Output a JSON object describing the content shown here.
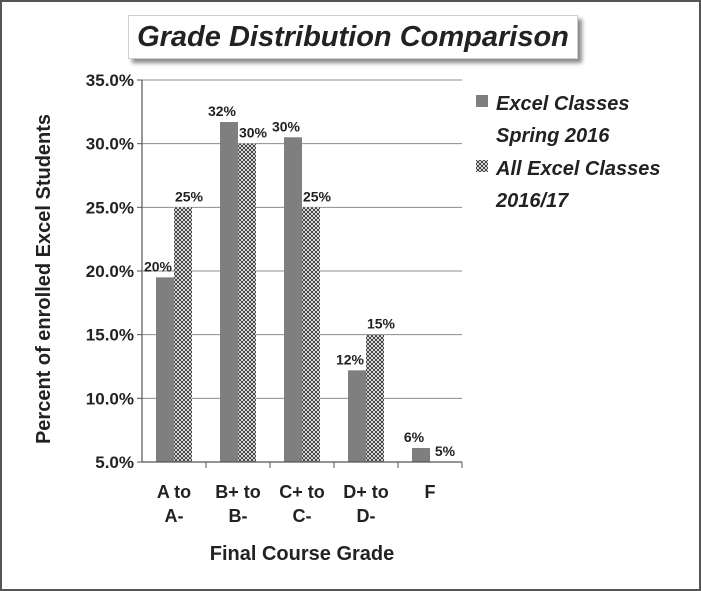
{
  "chart_data": {
    "type": "bar",
    "title": "Grade Distribution Comparison",
    "xlabel": "Final Course Grade",
    "ylabel": "Percent of enrolled Excel Students",
    "ylim": [
      5.0,
      35.0
    ],
    "y_ticks": [
      "35.0%",
      "30.0%",
      "25.0%",
      "20.0%",
      "15.0%",
      "10.0%",
      "5.0%"
    ],
    "y_tick_values": [
      35,
      30,
      25,
      20,
      15,
      10,
      5
    ],
    "categories": [
      [
        "A to",
        "A-"
      ],
      [
        "B+ to",
        "B-"
      ],
      [
        "C+ to",
        "C-"
      ],
      [
        "D+ to",
        "D-"
      ],
      [
        "F"
      ]
    ],
    "grid": true,
    "legend_position": "right",
    "series": [
      {
        "name_lines": [
          "Excel Classes",
          "Spring 2016"
        ],
        "values": [
          19.5,
          31.7,
          30.5,
          12.2,
          6.1
        ],
        "labels": [
          "20%",
          "32%",
          "30%",
          "12%",
          "6%"
        ],
        "color": "#7f7f7f",
        "pattern": "solid"
      },
      {
        "name_lines": [
          "All Excel Classes",
          "2016/17"
        ],
        "values": [
          25.0,
          30.0,
          25.0,
          15.0,
          5.0
        ],
        "labels": [
          "25%",
          "30%",
          "25%",
          "15%",
          "5%"
        ],
        "color": "#ffffff",
        "pattern": "crosshatch"
      }
    ]
  }
}
